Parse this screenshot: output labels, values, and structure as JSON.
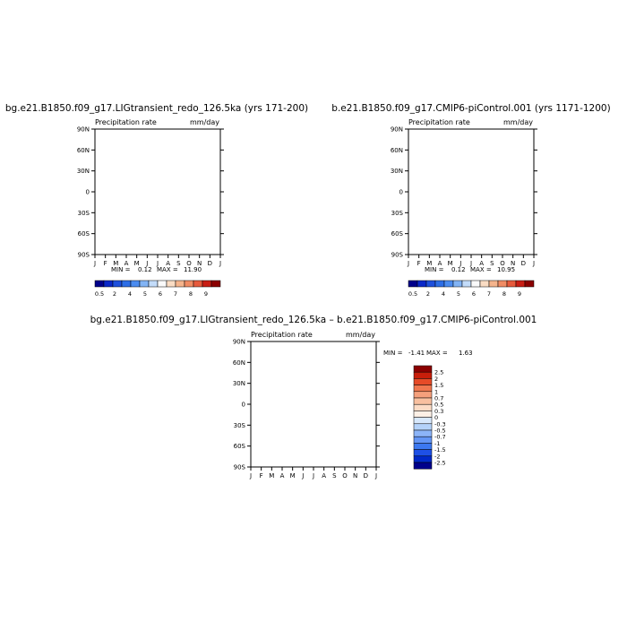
{
  "colors": {
    "abs_scale": [
      "#00008b",
      "#0a28c8",
      "#1e50dc",
      "#2d6ee6",
      "#4b8cf0",
      "#82b4f5",
      "#c3dcfa",
      "#fafafa",
      "#fadcc3",
      "#f5b48c",
      "#f08c64",
      "#e65a3c",
      "#c81e14",
      "#8b0000"
    ],
    "diff_scale": [
      "#00008b",
      "#0028c8",
      "#1e50e6",
      "#3c78f0",
      "#6496f5",
      "#8cb4f8",
      "#b4d2fa",
      "#d7e8fc",
      "#fdf0e6",
      "#fcdcc6",
      "#f8c0a0",
      "#f5a07c",
      "#f07850",
      "#e64b28",
      "#c81e0a",
      "#8b0000"
    ]
  },
  "panel_left": {
    "title": "bg.e21.B1850.f09_g17.LIGtransient_redo_126.5ka (yrs 171-200)",
    "var_label": "Precipitation rate",
    "unit": "mm/day",
    "min_label": "MIN =",
    "min_value": "0.12",
    "max_label": "MAX =",
    "max_value": "11.90"
  },
  "panel_right": {
    "title": "b.e21.B1850.f09_g17.CMIP6-piControl.001 (yrs 1171-1200)",
    "var_label": "Precipitation rate",
    "unit": "mm/day",
    "min_label": "MIN =",
    "min_value": "0.12",
    "max_label": "MAX =",
    "max_value": "10.95"
  },
  "panel_diff": {
    "title": "bg.e21.B1850.f09_g17.LIGtransient_redo_126.5ka – b.e21.B1850.f09_g17.CMIP6-piControl.001",
    "var_label": "Precipitation rate",
    "unit": "mm/day",
    "min_label": "MIN =",
    "min_value": "-1.41",
    "max_label": "MAX =",
    "max_value": "1.63"
  },
  "chart_data": [
    {
      "type": "heatmap",
      "title": "bg.e21.B1850.f09_g17.LIGtransient_redo_126.5ka (yrs 171-200)",
      "variable": "Precipitation rate",
      "unit": "mm/day",
      "x_ticks": [
        "J",
        "F",
        "M",
        "A",
        "M",
        "J",
        "J",
        "A",
        "S",
        "O",
        "N",
        "D",
        "J"
      ],
      "y_ticks": [
        "90N",
        "60N",
        "30N",
        "0",
        "30S",
        "60S",
        "90S"
      ],
      "colorbar_levels": [
        "0.5",
        "2",
        "4",
        "5",
        "6",
        "7",
        "8",
        "9"
      ],
      "min": 0.12,
      "max": 11.9
    },
    {
      "type": "heatmap",
      "title": "b.e21.B1850.f09_g17.CMIP6-piControl.001 (yrs 1171-1200)",
      "variable": "Precipitation rate",
      "unit": "mm/day",
      "x_ticks": [
        "J",
        "F",
        "M",
        "A",
        "M",
        "J",
        "J",
        "A",
        "S",
        "O",
        "N",
        "D",
        "J"
      ],
      "y_ticks": [
        "90N",
        "60N",
        "30N",
        "0",
        "30S",
        "60S",
        "90S"
      ],
      "colorbar_levels": [
        "0.5",
        "2",
        "4",
        "5",
        "6",
        "7",
        "8",
        "9"
      ],
      "min": 0.12,
      "max": 10.95
    },
    {
      "type": "heatmap",
      "title": "bg.e21.B1850.f09_g17.LIGtransient_redo_126.5ka – b.e21.B1850.f09_g17.CMIP6-piControl.001",
      "variable": "Precipitation rate",
      "unit": "mm/day",
      "x_ticks": [
        "J",
        "F",
        "M",
        "A",
        "M",
        "J",
        "J",
        "A",
        "S",
        "O",
        "N",
        "D",
        "J"
      ],
      "y_ticks": [
        "90N",
        "60N",
        "30N",
        "0",
        "30S",
        "60S",
        "90S"
      ],
      "colorbar_levels": [
        "2.5",
        "2",
        "1.5",
        "1",
        "0.7",
        "0.5",
        "0.3",
        "0",
        "-0.3",
        "-0.5",
        "-0.7",
        "-1",
        "-1.5",
        "-2",
        "-2.5"
      ],
      "min": -1.41,
      "max": 1.63
    }
  ]
}
